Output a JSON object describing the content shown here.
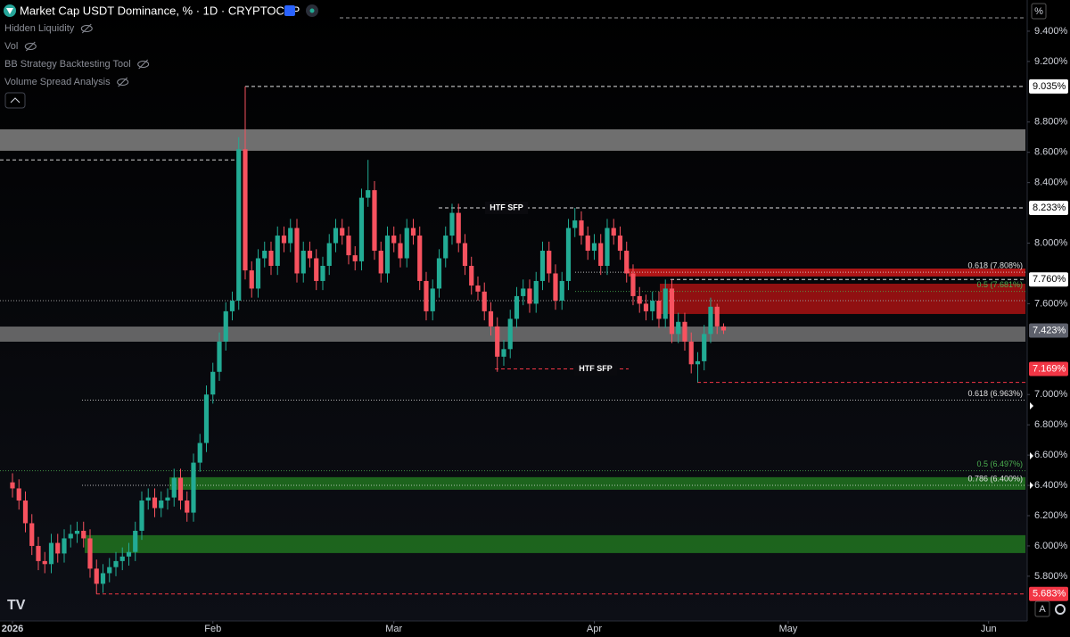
{
  "chart_data": {
    "type": "candlestick",
    "title": "Market Cap USDT Dominance, % · 1D · CRYPTOCAP",
    "indicators": [
      "Hidden Liquidity",
      "Vol",
      "BB Strategy Backtesting Tool",
      "Volume Spread Analysis"
    ],
    "unit_label": "%",
    "auto_button": "A",
    "up_color": "#22ab94",
    "down_color": "#f7525f",
    "grid": false,
    "xlim": [
      -1.93,
      156.97
    ],
    "xticks": [
      {
        "value": 0,
        "label": "2026"
      },
      {
        "value": 31,
        "label": "Feb"
      },
      {
        "value": 59,
        "label": "Mar"
      },
      {
        "value": 90,
        "label": "Apr"
      },
      {
        "value": 120,
        "label": "May"
      },
      {
        "value": 151,
        "label": "Jun"
      }
    ],
    "ylim": [
      5.481,
      9.606
    ],
    "yticks": [
      {
        "value": 9.4,
        "label": "9.400%"
      },
      {
        "value": 9.2,
        "label": "9.200%"
      },
      {
        "value": 8.8,
        "label": "8.800%"
      },
      {
        "value": 8.6,
        "label": "8.600%"
      },
      {
        "value": 8.4,
        "label": "8.400%"
      },
      {
        "value": 8.0,
        "label": "8.000%"
      },
      {
        "value": 7.6,
        "label": "7.600%"
      },
      {
        "value": 7.0,
        "label": "7.000%"
      },
      {
        "value": 6.8,
        "label": "6.800%"
      },
      {
        "value": 6.6,
        "label": "6.600%"
      },
      {
        "value": 6.4,
        "label": "6.400%"
      },
      {
        "value": 6.2,
        "label": "6.200%"
      },
      {
        "value": 6.0,
        "label": "6.000%"
      },
      {
        "value": 5.8,
        "label": "5.800%"
      }
    ],
    "open": [
      6.42,
      6.38,
      6.3,
      6.15,
      6.0,
      5.9,
      5.88,
      6.02,
      5.95,
      6.05,
      6.08,
      6.1,
      6.05,
      5.85,
      5.75,
      5.82,
      5.86,
      5.9,
      5.93,
      5.96,
      6.1,
      6.3,
      6.32,
      6.25,
      6.3,
      6.32,
      6.45,
      6.3,
      6.22,
      6.55,
      6.68,
      7.0,
      7.15,
      7.35,
      7.55,
      7.62,
      8.62,
      7.82,
      7.7,
      7.9,
      7.95,
      7.85,
      8.05,
      8.0,
      8.1,
      7.8,
      7.95,
      7.9,
      7.75,
      7.85,
      8.0,
      8.1,
      8.05,
      7.92,
      7.88,
      8.3,
      8.35,
      7.95,
      7.8,
      8.05,
      8.0,
      7.9,
      8.1,
      8.05,
      7.75,
      7.55,
      7.7,
      7.9,
      8.05,
      8.2,
      8.0,
      7.85,
      7.72,
      7.68,
      7.55,
      7.45,
      7.25,
      7.3,
      7.5,
      7.65,
      7.7,
      7.6,
      7.75,
      7.95,
      7.8,
      7.62,
      7.75,
      8.1,
      8.15,
      8.05,
      7.95,
      8.0,
      7.85,
      8.1,
      8.05,
      7.95,
      7.8,
      7.65,
      7.6,
      7.55,
      7.62,
      7.5,
      7.7,
      7.4,
      7.48,
      7.35,
      7.2,
      7.22,
      7.4,
      7.58,
      7.45
    ],
    "high": [
      6.48,
      6.44,
      6.36,
      6.21,
      6.06,
      5.96,
      6.08,
      6.08,
      6.11,
      6.14,
      6.16,
      6.16,
      6.11,
      5.91,
      5.88,
      5.92,
      5.96,
      5.99,
      6.02,
      6.16,
      6.36,
      6.38,
      6.38,
      6.36,
      6.38,
      6.51,
      6.51,
      6.36,
      6.61,
      6.74,
      7.06,
      7.21,
      7.41,
      7.61,
      7.68,
      8.7,
      9.035,
      7.88,
      7.96,
      8.01,
      8.01,
      8.11,
      8.11,
      8.16,
      8.16,
      8.01,
      8.01,
      7.96,
      7.91,
      8.06,
      8.16,
      8.16,
      8.11,
      7.98,
      8.36,
      8.55,
      8.41,
      8.01,
      8.11,
      8.11,
      8.06,
      8.16,
      8.16,
      8.11,
      7.81,
      7.76,
      7.96,
      8.11,
      8.26,
      8.26,
      8.06,
      7.91,
      7.78,
      7.74,
      7.61,
      7.51,
      7.36,
      7.56,
      7.71,
      7.76,
      7.76,
      7.81,
      8.01,
      8.01,
      7.86,
      7.81,
      8.16,
      8.233,
      8.21,
      8.11,
      8.06,
      8.06,
      8.16,
      8.16,
      8.11,
      8.01,
      7.86,
      7.71,
      7.66,
      7.68,
      7.68,
      7.76,
      7.76,
      7.54,
      7.54,
      7.41,
      7.28,
      7.46,
      7.64,
      7.6,
      7.47
    ],
    "low": [
      6.32,
      6.24,
      6.09,
      5.94,
      5.84,
      5.82,
      5.82,
      5.89,
      5.89,
      5.99,
      6.02,
      5.99,
      5.79,
      5.683,
      5.69,
      5.76,
      5.8,
      5.84,
      5.87,
      5.9,
      6.04,
      6.24,
      6.19,
      6.19,
      6.24,
      6.26,
      6.24,
      6.16,
      6.16,
      6.49,
      6.62,
      6.94,
      7.09,
      7.29,
      7.49,
      7.56,
      7.76,
      7.64,
      7.64,
      7.84,
      7.79,
      7.79,
      7.94,
      7.94,
      7.74,
      7.74,
      7.84,
      7.69,
      7.69,
      7.79,
      7.94,
      7.99,
      7.86,
      7.82,
      7.82,
      8.24,
      7.89,
      7.74,
      7.74,
      7.94,
      7.84,
      7.84,
      7.99,
      7.69,
      7.49,
      7.49,
      7.64,
      7.84,
      7.99,
      7.94,
      7.79,
      7.66,
      7.62,
      7.49,
      7.39,
      7.15,
      7.19,
      7.24,
      7.44,
      7.59,
      7.54,
      7.54,
      7.69,
      7.74,
      7.56,
      7.56,
      7.69,
      8.04,
      7.99,
      7.89,
      7.89,
      7.79,
      7.79,
      7.99,
      7.89,
      7.74,
      7.59,
      7.54,
      7.49,
      7.49,
      7.44,
      7.44,
      7.34,
      7.34,
      7.29,
      7.14,
      7.08,
      7.16,
      7.34,
      7.4,
      7.4
    ],
    "close": [
      6.38,
      6.3,
      6.15,
      6.0,
      5.9,
      5.88,
      6.02,
      5.95,
      6.05,
      6.08,
      6.1,
      6.05,
      5.85,
      5.75,
      5.82,
      5.86,
      5.9,
      5.93,
      5.96,
      6.1,
      6.3,
      6.32,
      6.25,
      6.3,
      6.32,
      6.45,
      6.3,
      6.22,
      6.55,
      6.68,
      7.0,
      7.15,
      7.35,
      7.55,
      7.62,
      8.62,
      7.82,
      7.7,
      7.9,
      7.95,
      7.85,
      8.05,
      8.0,
      8.1,
      7.8,
      7.95,
      7.9,
      7.75,
      7.85,
      8.0,
      8.1,
      8.05,
      7.92,
      7.88,
      8.3,
      8.35,
      7.95,
      7.8,
      8.05,
      8.0,
      7.9,
      8.1,
      8.05,
      7.75,
      7.55,
      7.7,
      7.9,
      8.05,
      8.2,
      8.0,
      7.85,
      7.72,
      7.68,
      7.55,
      7.45,
      7.25,
      7.3,
      7.5,
      7.65,
      7.7,
      7.6,
      7.75,
      7.95,
      7.8,
      7.62,
      7.75,
      8.1,
      8.15,
      8.05,
      7.95,
      8.0,
      7.85,
      8.1,
      8.05,
      7.95,
      7.8,
      7.65,
      7.6,
      7.55,
      7.62,
      7.5,
      7.7,
      7.4,
      7.48,
      7.35,
      7.2,
      7.22,
      7.4,
      7.58,
      7.45,
      7.423
    ],
    "zones": [
      {
        "from": 8.61,
        "to": 8.752,
        "color": "#7b7b7b"
      },
      {
        "from": 7.349,
        "to": 7.449,
        "color": "#6e6e6e"
      },
      {
        "from": 7.78,
        "to": 7.832,
        "color": "#c41818"
      },
      {
        "from": 7.532,
        "to": 7.732,
        "color": "#a01212"
      },
      {
        "from": 6.371,
        "to": 6.454,
        "color": "#1f6e1f"
      },
      {
        "from": 5.953,
        "to": 6.071,
        "color": "#1f6e1f"
      }
    ],
    "levels": [
      {
        "value": 8.55,
        "style": "dashed",
        "color": "#cfcfcf"
      },
      {
        "value": 7.62,
        "style": "dotted",
        "color": "#9a9a9a"
      },
      {
        "value": 7.08,
        "style": "dashed",
        "color": "#f23645"
      }
    ],
    "price_tags": [
      {
        "value": 9.035,
        "label": "9.035%",
        "bg": "#ffffff",
        "fg": "#000000",
        "line": "dashed",
        "line_color": "#e0e0e0"
      },
      {
        "value": 8.233,
        "label": "8.233%",
        "bg": "#ffffff",
        "fg": "#000000",
        "line": "dashed",
        "line_color": "#e0e0e0"
      },
      {
        "value": 7.76,
        "label": "7.760%",
        "bg": "#ffffff",
        "fg": "#000000",
        "line": "dashed",
        "line_color": "#e0e0e0"
      },
      {
        "value": 7.423,
        "label": "7.423%",
        "bg": "#5d606b",
        "fg": "#ffffff",
        "line": "none",
        "line_color": "#5d606b"
      },
      {
        "value": 7.169,
        "label": "7.169%",
        "bg": "#f23645",
        "fg": "#ffffff",
        "line": "dashed",
        "line_color": "#f23645"
      },
      {
        "value": 5.683,
        "label": "5.683%",
        "bg": "#f23645",
        "fg": "#ffffff",
        "line": "dashed",
        "line_color": "#f23645"
      }
    ],
    "fib_labels": [
      {
        "value": 7.808,
        "label": "0.618 (7.808%)",
        "color": "#e0e0e0"
      },
      {
        "value": 7.681,
        "label": "0.5 (7.681%)",
        "color": "#4caf50"
      },
      {
        "value": 6.963,
        "label": "0.618 (6.963%)",
        "color": "#e0e0e0"
      },
      {
        "value": 6.497,
        "label": "0.5 (6.497%)",
        "color": "#4caf50"
      },
      {
        "value": 6.4,
        "label": "0.786 (6.400%)",
        "color": "#e0e0e0"
      }
    ],
    "annotations": [
      {
        "text": "HTF SFP",
        "value": 8.233
      },
      {
        "text": "HTF SFP",
        "value": 7.169
      }
    ]
  }
}
